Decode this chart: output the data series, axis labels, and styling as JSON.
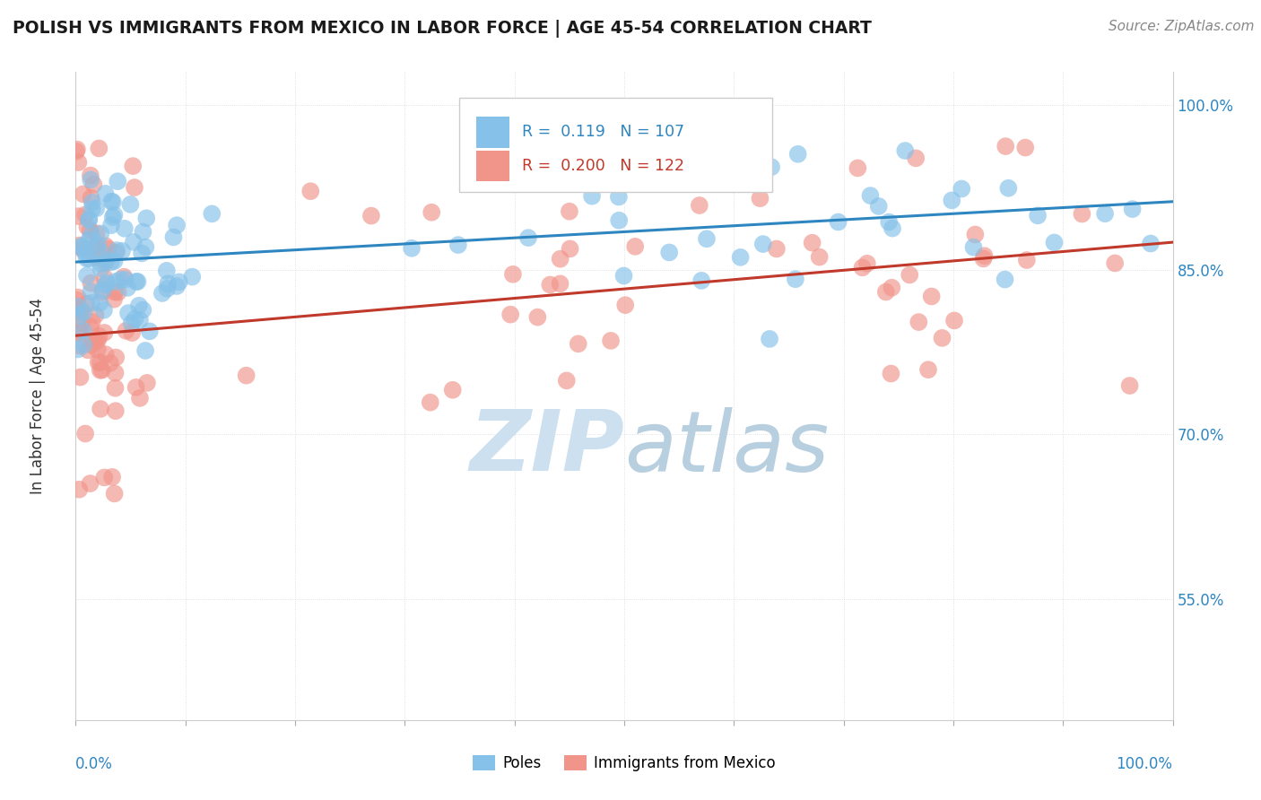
{
  "title": "POLISH VS IMMIGRANTS FROM MEXICO IN LABOR FORCE | AGE 45-54 CORRELATION CHART",
  "source": "Source: ZipAtlas.com",
  "ylabel": "In Labor Force | Age 45-54",
  "ytick_values": [
    0.55,
    0.7,
    0.85,
    1.0
  ],
  "legend_blue_r": "0.119",
  "legend_blue_n": "107",
  "legend_pink_r": "0.200",
  "legend_pink_n": "122",
  "blue_color": "#85c1e9",
  "pink_color": "#f1948a",
  "trend_blue_color": "#2e86c1",
  "trend_pink_color": "#c0392b",
  "watermark_color": "#cce0f0",
  "background_color": "#ffffff",
  "xlim": [
    0,
    1
  ],
  "ylim": [
    0.44,
    1.03
  ]
}
